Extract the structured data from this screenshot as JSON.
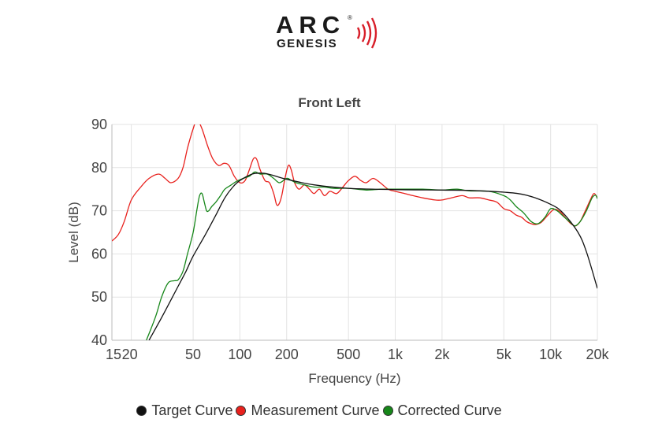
{
  "logo": {
    "brand": "ARC",
    "sub": "GENESIS",
    "mark": "®"
  },
  "chart_data": {
    "type": "line",
    "title": "Front Left",
    "xlabel": "Frequency (Hz)",
    "ylabel": "Level (dB)",
    "x_scale": "log",
    "xlim": [
      15,
      20000
    ],
    "ylim": [
      40,
      90
    ],
    "x_ticks": [
      {
        "value": 15,
        "label": "15"
      },
      {
        "value": 20,
        "label": "20"
      },
      {
        "value": 50,
        "label": "50"
      },
      {
        "value": 100,
        "label": "100"
      },
      {
        "value": 200,
        "label": "200"
      },
      {
        "value": 500,
        "label": "500"
      },
      {
        "value": 1000,
        "label": "1k"
      },
      {
        "value": 2000,
        "label": "2k"
      },
      {
        "value": 5000,
        "label": "5k"
      },
      {
        "value": 10000,
        "label": "10k"
      },
      {
        "value": 20000,
        "label": "20k"
      }
    ],
    "y_ticks": [
      40,
      50,
      60,
      70,
      80,
      90
    ],
    "grid": true,
    "legend_position": "bottom",
    "series": [
      {
        "name": "Target Curve",
        "color": "#111111",
        "points": [
          [
            26,
            40
          ],
          [
            30,
            44
          ],
          [
            35,
            48.5
          ],
          [
            40,
            52.5
          ],
          [
            45,
            56
          ],
          [
            50,
            59.5
          ],
          [
            60,
            64.5
          ],
          [
            70,
            69
          ],
          [
            80,
            73
          ],
          [
            90,
            75.5
          ],
          [
            100,
            77
          ],
          [
            120,
            78.5
          ],
          [
            140,
            78.7
          ],
          [
            160,
            78.3
          ],
          [
            200,
            77.3
          ],
          [
            300,
            76
          ],
          [
            500,
            75.2
          ],
          [
            1000,
            74.9
          ],
          [
            2000,
            74.8
          ],
          [
            3000,
            74.7
          ],
          [
            5000,
            74.3
          ],
          [
            7000,
            73.6
          ],
          [
            10000,
            71.5
          ],
          [
            12000,
            69.5
          ],
          [
            15000,
            65
          ],
          [
            17000,
            60.5
          ],
          [
            20000,
            52
          ]
        ]
      },
      {
        "name": "Measurement Curve",
        "color": "#e8211d",
        "points": [
          [
            15,
            63
          ],
          [
            16.5,
            64.5
          ],
          [
            18,
            67.5
          ],
          [
            20,
            72.5
          ],
          [
            23,
            75.5
          ],
          [
            26,
            77.5
          ],
          [
            30,
            78.5
          ],
          [
            33,
            77.5
          ],
          [
            36,
            76.5
          ],
          [
            40,
            77.5
          ],
          [
            43,
            80
          ],
          [
            46,
            84.5
          ],
          [
            50,
            89
          ],
          [
            53,
            91
          ],
          [
            57,
            89
          ],
          [
            62,
            85
          ],
          [
            67,
            82
          ],
          [
            73,
            80.5
          ],
          [
            79,
            81
          ],
          [
            85,
            80.5
          ],
          [
            92,
            78
          ],
          [
            100,
            76.5
          ],
          [
            108,
            77
          ],
          [
            115,
            79.5
          ],
          [
            122,
            82
          ],
          [
            128,
            82
          ],
          [
            135,
            79.5
          ],
          [
            145,
            77
          ],
          [
            155,
            76.5
          ],
          [
            165,
            74
          ],
          [
            172,
            71.5
          ],
          [
            178,
            71.5
          ],
          [
            186,
            73.5
          ],
          [
            195,
            77.5
          ],
          [
            205,
            80.5
          ],
          [
            214,
            79.5
          ],
          [
            225,
            76.5
          ],
          [
            240,
            75
          ],
          [
            260,
            76
          ],
          [
            280,
            75
          ],
          [
            300,
            74
          ],
          [
            325,
            75
          ],
          [
            350,
            73.5
          ],
          [
            380,
            74.5
          ],
          [
            420,
            74
          ],
          [
            460,
            75.5
          ],
          [
            500,
            77
          ],
          [
            550,
            78
          ],
          [
            600,
            77
          ],
          [
            650,
            76.5
          ],
          [
            720,
            77.5
          ],
          [
            800,
            76.5
          ],
          [
            900,
            75
          ],
          [
            1000,
            74.5
          ],
          [
            1150,
            74
          ],
          [
            1300,
            73.5
          ],
          [
            1500,
            73
          ],
          [
            1800,
            72.5
          ],
          [
            2000,
            72.5
          ],
          [
            2300,
            73
          ],
          [
            2700,
            73.5
          ],
          [
            3000,
            73
          ],
          [
            3500,
            73
          ],
          [
            4000,
            72.5
          ],
          [
            4500,
            72
          ],
          [
            5000,
            70.5
          ],
          [
            5500,
            70
          ],
          [
            6000,
            69
          ],
          [
            6500,
            68.5
          ],
          [
            7000,
            67.5
          ],
          [
            7500,
            67
          ],
          [
            8000,
            66.8
          ],
          [
            8700,
            67.3
          ],
          [
            9500,
            68.8
          ],
          [
            10500,
            70.3
          ],
          [
            11500,
            69.8
          ],
          [
            12500,
            68.3
          ],
          [
            13500,
            67
          ],
          [
            14500,
            66.5
          ],
          [
            15500,
            67.5
          ],
          [
            16500,
            69.5
          ],
          [
            18000,
            72.5
          ],
          [
            19000,
            74
          ],
          [
            20000,
            73
          ]
        ]
      },
      {
        "name": "Corrected Curve",
        "color": "#17871a",
        "points": [
          [
            25,
            40
          ],
          [
            27,
            43
          ],
          [
            29,
            46
          ],
          [
            31,
            49.5
          ],
          [
            33,
            52
          ],
          [
            35,
            53.5
          ],
          [
            38,
            53.8
          ],
          [
            40,
            54
          ],
          [
            43,
            56
          ],
          [
            46,
            60
          ],
          [
            50,
            65
          ],
          [
            53,
            70.5
          ],
          [
            55,
            73.5
          ],
          [
            57,
            74
          ],
          [
            59,
            72
          ],
          [
            61,
            70
          ],
          [
            63,
            70
          ],
          [
            66,
            71
          ],
          [
            70,
            72
          ],
          [
            75,
            73.5
          ],
          [
            80,
            75
          ],
          [
            88,
            76
          ],
          [
            95,
            76.8
          ],
          [
            105,
            77.5
          ],
          [
            115,
            78
          ],
          [
            125,
            79
          ],
          [
            135,
            78.5
          ],
          [
            150,
            78.5
          ],
          [
            165,
            77.5
          ],
          [
            180,
            76.5
          ],
          [
            200,
            77.5
          ],
          [
            215,
            77
          ],
          [
            230,
            76.5
          ],
          [
            260,
            76
          ],
          [
            300,
            75.5
          ],
          [
            350,
            75.5
          ],
          [
            400,
            75.2
          ],
          [
            500,
            75.2
          ],
          [
            650,
            74.8
          ],
          [
            800,
            75
          ],
          [
            1000,
            75
          ],
          [
            1500,
            75
          ],
          [
            2000,
            74.8
          ],
          [
            2500,
            75
          ],
          [
            3000,
            74.6
          ],
          [
            4000,
            74.5
          ],
          [
            5000,
            73.5
          ],
          [
            5500,
            72.5
          ],
          [
            6000,
            71
          ],
          [
            6700,
            69.5
          ],
          [
            7500,
            67.5
          ],
          [
            8300,
            67
          ],
          [
            9200,
            68.5
          ],
          [
            10000,
            70.5
          ],
          [
            11000,
            70
          ],
          [
            12000,
            68.8
          ],
          [
            13200,
            67.5
          ],
          [
            14300,
            66.5
          ],
          [
            15500,
            67.5
          ],
          [
            17000,
            70
          ],
          [
            18500,
            73
          ],
          [
            19500,
            73.6
          ],
          [
            20000,
            72.8
          ]
        ]
      }
    ]
  }
}
